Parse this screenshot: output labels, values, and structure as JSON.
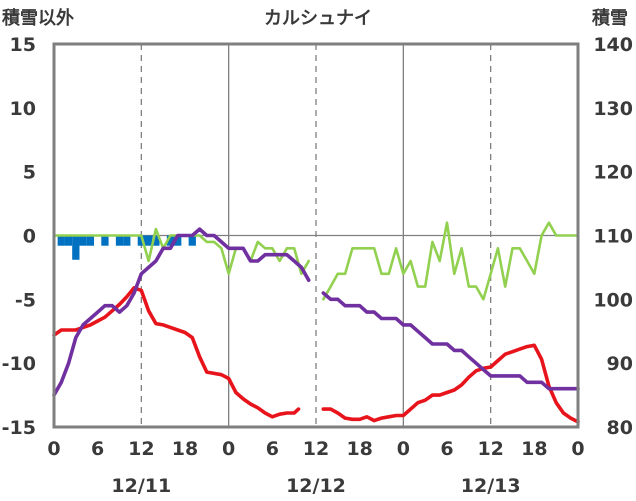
{
  "title": "カルシュナイ",
  "left_axis_label": "積雪以外",
  "right_axis_label": "積雪",
  "colors": {
    "temperature": "#e8141c",
    "precip_bars": "#0070c0",
    "snowfall_line": "#92d050",
    "snow_depth": "#7030a0",
    "frame": "#7f7f7f",
    "grid": "#7f7f7f"
  },
  "chart_data": {
    "type": "line",
    "title": "カルシュナイ",
    "x_range_hours": [
      0,
      72
    ],
    "x_tick_labels": [
      "0",
      "6",
      "12",
      "18",
      "0",
      "6",
      "12",
      "18",
      "0",
      "6",
      "12",
      "18",
      "0"
    ],
    "date_labels": [
      "12/11",
      "12/12",
      "12/13"
    ],
    "y_left": {
      "label": "積雪以外",
      "min": -15,
      "max": 15,
      "ticks": [
        "15",
        "10",
        "5",
        "0",
        "-5",
        "-10",
        "-15"
      ]
    },
    "y_right": {
      "label": "積雪",
      "min": 80,
      "max": 140,
      "ticks": [
        "140",
        "130",
        "120",
        "110",
        "100",
        "90",
        "80"
      ]
    },
    "grid": "dashed vertical at 12h, solid vertical at day boundaries, solid horizontal at 0",
    "series": [
      {
        "axis": "left",
        "kind": "line",
        "points": [
          [
            0,
            -7.8
          ],
          [
            1,
            -7.4
          ],
          [
            2,
            -7.4
          ],
          [
            3,
            -7.4
          ],
          [
            4,
            -7.2
          ],
          [
            5,
            -7.0
          ],
          [
            6,
            -6.7
          ],
          [
            7,
            -6.4
          ],
          [
            8,
            -5.9
          ],
          [
            9,
            -5.4
          ],
          [
            10,
            -4.8
          ],
          [
            11,
            -4.1
          ],
          [
            12,
            -4.3
          ],
          [
            13,
            -5.9
          ],
          [
            14,
            -6.9
          ],
          [
            15,
            -7.0
          ],
          [
            16,
            -7.2
          ],
          [
            17,
            -7.4
          ],
          [
            18,
            -7.6
          ],
          [
            19,
            -8.0
          ],
          [
            20,
            -9.5
          ],
          [
            21,
            -10.7
          ],
          [
            22,
            -10.8
          ],
          [
            23,
            -10.9
          ],
          [
            24,
            -11.2
          ],
          [
            25,
            -12.3
          ],
          [
            26,
            -12.8
          ],
          [
            27,
            -13.2
          ],
          [
            28,
            -13.5
          ],
          [
            29,
            -13.9
          ],
          [
            30,
            -14.2
          ],
          [
            31,
            -14.0
          ],
          [
            32,
            -13.9
          ],
          [
            33,
            -13.9
          ],
          [
            33.6,
            -13.6
          ],
          null,
          [
            37,
            -13.6
          ],
          [
            38,
            -13.6
          ],
          [
            39,
            -13.9
          ],
          [
            40,
            -14.3
          ],
          [
            41,
            -14.4
          ],
          [
            42,
            -14.4
          ],
          [
            43,
            -14.2
          ],
          [
            44,
            -14.5
          ],
          [
            45,
            -14.3
          ],
          [
            46,
            -14.2
          ],
          [
            47,
            -14.1
          ],
          [
            48,
            -14.1
          ],
          [
            49,
            -13.6
          ],
          [
            50,
            -13.1
          ],
          [
            51,
            -12.9
          ],
          [
            52,
            -12.5
          ],
          [
            53,
            -12.5
          ],
          [
            54,
            -12.3
          ],
          [
            55,
            -12.1
          ],
          [
            56,
            -11.7
          ],
          [
            57,
            -11.1
          ],
          [
            58,
            -10.6
          ],
          [
            59,
            -10.4
          ],
          [
            60,
            -10.3
          ],
          [
            61,
            -9.8
          ],
          [
            62,
            -9.3
          ],
          [
            63,
            -9.1
          ],
          [
            64,
            -8.9
          ],
          [
            65,
            -8.7
          ],
          [
            66,
            -8.6
          ],
          [
            67,
            -9.7
          ],
          [
            68,
            -11.8
          ],
          [
            69,
            -13.1
          ],
          [
            70,
            -13.9
          ],
          [
            71,
            -14.3
          ],
          [
            72,
            -14.6
          ]
        ]
      },
      {
        "axis": "right",
        "kind": "line",
        "points": [
          [
            0,
            85
          ],
          [
            1,
            87
          ],
          [
            2,
            90
          ],
          [
            3,
            94
          ],
          [
            4,
            96
          ],
          [
            5,
            97
          ],
          [
            6,
            98
          ],
          [
            7,
            99
          ],
          [
            8,
            99
          ],
          [
            9,
            98
          ],
          [
            10,
            99
          ],
          [
            11,
            101
          ],
          [
            12,
            104
          ],
          [
            13,
            105
          ],
          [
            14,
            106
          ],
          [
            15,
            108
          ],
          [
            16,
            108
          ],
          [
            17,
            110
          ],
          [
            18,
            110
          ],
          [
            19,
            110
          ],
          [
            20,
            111
          ],
          [
            21,
            110
          ],
          [
            22,
            110
          ],
          [
            23,
            109
          ],
          [
            24,
            108
          ],
          [
            25,
            108
          ],
          [
            26,
            108
          ],
          [
            27,
            106
          ],
          [
            28,
            106
          ],
          [
            29,
            107
          ],
          [
            30,
            107
          ],
          [
            31,
            107
          ],
          [
            32,
            107
          ],
          [
            33,
            106
          ],
          [
            34,
            105
          ],
          [
            35,
            103
          ],
          null,
          [
            37,
            101
          ],
          [
            38,
            100
          ],
          [
            39,
            100
          ],
          [
            40,
            99
          ],
          [
            41,
            99
          ],
          [
            42,
            99
          ],
          [
            43,
            98
          ],
          [
            44,
            98
          ],
          [
            45,
            97
          ],
          [
            46,
            97
          ],
          [
            47,
            97
          ],
          [
            48,
            96
          ],
          [
            49,
            96
          ],
          [
            50,
            95
          ],
          [
            51,
            94
          ],
          [
            52,
            93
          ],
          [
            53,
            93
          ],
          [
            54,
            93
          ],
          [
            55,
            92
          ],
          [
            56,
            92
          ],
          [
            57,
            91
          ],
          [
            58,
            90
          ],
          [
            59,
            89
          ],
          [
            60,
            88
          ],
          [
            61,
            88
          ],
          [
            62,
            88
          ],
          [
            63,
            88
          ],
          [
            64,
            88
          ],
          [
            65,
            87
          ],
          [
            66,
            87
          ],
          [
            67,
            87
          ],
          [
            68,
            86
          ],
          [
            69,
            86
          ],
          [
            70,
            86
          ],
          [
            71,
            86
          ],
          [
            72,
            86
          ]
        ]
      },
      {
        "axis": "left",
        "kind": "line",
        "points": [
          [
            0,
            0
          ],
          [
            1,
            0
          ],
          [
            2,
            0
          ],
          [
            3,
            0
          ],
          [
            4,
            0
          ],
          [
            5,
            0
          ],
          [
            6,
            0
          ],
          [
            7,
            0
          ],
          [
            8,
            0
          ],
          [
            9,
            0
          ],
          [
            10,
            0
          ],
          [
            11,
            0
          ],
          [
            12,
            0
          ],
          [
            12.5,
            -1
          ],
          [
            13,
            -2
          ],
          [
            14,
            0.5
          ],
          [
            15,
            -1
          ],
          [
            16,
            0
          ],
          [
            17,
            0
          ],
          [
            18,
            0
          ],
          [
            19,
            0
          ],
          [
            20,
            0
          ],
          [
            21,
            -0.5
          ],
          [
            22,
            -0.5
          ],
          [
            23,
            -1
          ],
          [
            24,
            -3
          ],
          [
            25,
            -1
          ],
          [
            26,
            -1
          ],
          [
            27,
            -2
          ],
          [
            28,
            -0.5
          ],
          [
            29,
            -1
          ],
          [
            30,
            -1
          ],
          [
            31,
            -2
          ],
          [
            32,
            -1
          ],
          [
            33,
            -1
          ],
          [
            34,
            -3
          ],
          [
            35,
            -2
          ],
          null,
          [
            37,
            -5
          ],
          [
            38,
            -4
          ],
          [
            39,
            -3
          ],
          [
            40,
            -3
          ],
          [
            41,
            -1
          ],
          [
            42,
            -1
          ],
          [
            43,
            -1
          ],
          [
            44,
            -1
          ],
          [
            45,
            -3
          ],
          [
            46,
            -3
          ],
          [
            47,
            -1
          ],
          [
            48,
            -3
          ],
          [
            49,
            -2
          ],
          [
            50,
            -4
          ],
          [
            51,
            -4
          ],
          [
            52,
            -0.5
          ],
          [
            53,
            -2
          ],
          [
            54,
            1
          ],
          [
            55,
            -3
          ],
          [
            56,
            -1
          ],
          [
            57,
            -4
          ],
          [
            58,
            -4
          ],
          [
            59,
            -5
          ],
          [
            60,
            -3
          ],
          [
            61,
            -1
          ],
          [
            62,
            -4
          ],
          [
            63,
            -1
          ],
          [
            64,
            -1
          ],
          [
            65,
            -2
          ],
          [
            66,
            -3
          ],
          [
            67,
            0
          ],
          [
            68,
            1
          ],
          [
            69,
            0
          ],
          [
            70,
            0
          ],
          [
            71,
            0
          ],
          [
            72,
            0
          ]
        ]
      },
      {
        "axis": "left",
        "kind": "bar",
        "points": [
          [
            1,
            -0.8
          ],
          [
            2,
            -0.8
          ],
          [
            3,
            -1.9
          ],
          [
            4,
            -0.8
          ],
          [
            5,
            -0.8
          ],
          [
            7,
            -0.8
          ],
          [
            9,
            -0.8
          ],
          [
            10,
            -0.8
          ],
          [
            12,
            -0.8
          ],
          [
            13,
            -0.8
          ],
          [
            14,
            -0.8
          ],
          [
            16,
            -0.8
          ],
          [
            17,
            -0.8
          ],
          [
            19,
            -0.8
          ]
        ]
      }
    ]
  }
}
